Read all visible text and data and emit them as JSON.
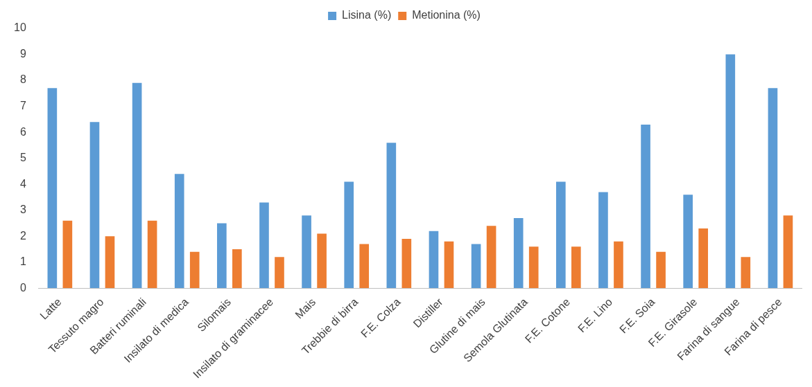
{
  "chart_data": {
    "type": "bar",
    "categories": [
      "Latte",
      "Tessuto magro",
      "Batteri ruminali",
      "Insilato di medica",
      "Silomais",
      "Insilato di graminacee",
      "Mais",
      "Trebbie di birra",
      "F.E. Colza",
      "Distiller",
      "Glutine di mais",
      "Semola Glutinata",
      "F.E. Cotone",
      "F.E. Lino",
      "F.E. Soia",
      "F.E. Girasole",
      "Farina di sangue",
      "Farina di pesce"
    ],
    "series": [
      {
        "name": "Lisina (%)",
        "color": "#5b9bd5",
        "values": [
          7.7,
          6.4,
          7.9,
          4.4,
          2.5,
          3.3,
          2.8,
          4.1,
          5.6,
          2.2,
          1.7,
          2.7,
          4.1,
          3.7,
          6.3,
          3.6,
          9.0,
          7.7
        ]
      },
      {
        "name": "Metionina (%)",
        "color": "#ed7d31",
        "values": [
          2.6,
          2.0,
          2.6,
          1.4,
          1.5,
          1.2,
          2.1,
          1.7,
          1.9,
          1.8,
          2.4,
          1.6,
          1.6,
          1.8,
          1.4,
          2.3,
          1.2,
          2.8
        ]
      }
    ],
    "ylim": [
      0,
      10
    ],
    "yticks": [
      0,
      1,
      2,
      3,
      4,
      5,
      6,
      7,
      8,
      9,
      10
    ],
    "grid": false,
    "legend": "top"
  }
}
